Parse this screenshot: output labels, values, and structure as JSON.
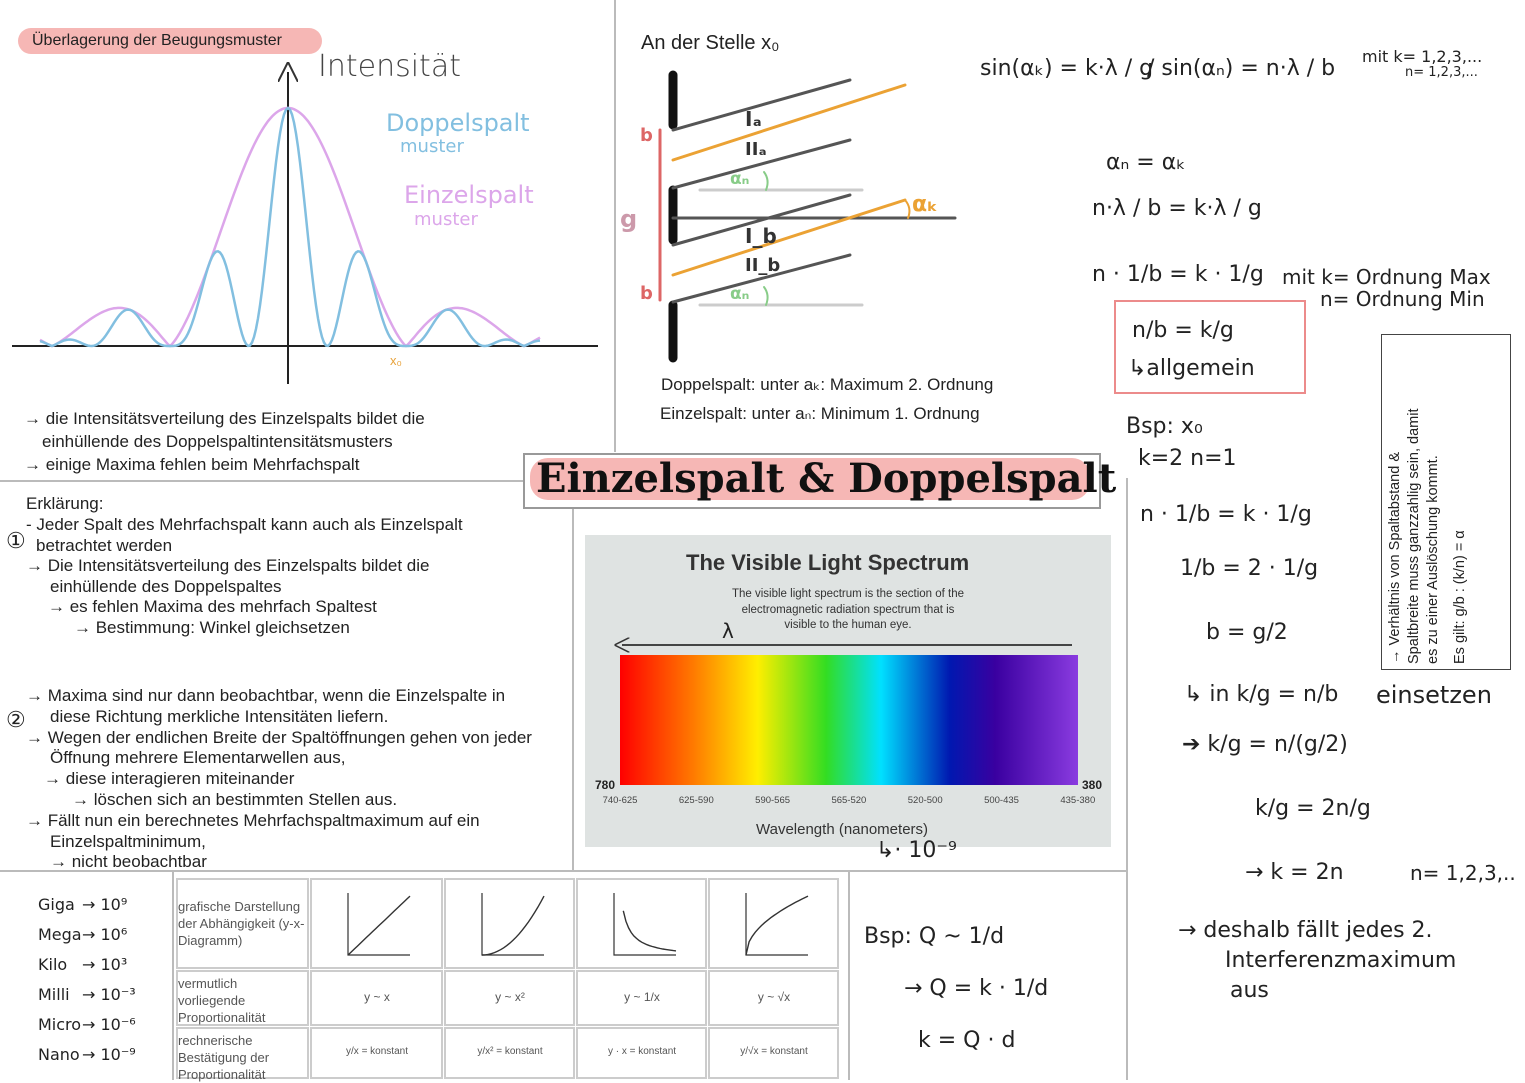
{
  "title": "Einzelspalt & Doppelspalt",
  "interference": {
    "tag": "Überlagerung der Beugungsmuster",
    "axis_label": "Intensität",
    "legend": [
      "Doppelspalt",
      "muster",
      "Einzelspalt",
      "muster"
    ],
    "x0": "x₀",
    "notes": [
      "→ die Intensitätsverteilung des Einzelspalts bildet die",
      "einhüllende des Doppelspaltintensitätsmusters",
      "→ einige Maxima fehlen beim Mehrfachspalt"
    ]
  },
  "explanation": {
    "heading": "Erklärung:",
    "marker_1": "①",
    "point_1": [
      "- Jeder Spalt des Mehrfachspalt kann auch als Einzelspalt",
      "betrachtet werden",
      "→ Die Intensitätsverteilung des Einzelspalts bildet die",
      "einhüllende des Doppelspaltes",
      "→ es fehlen Maxima des mehrfach Spaltest",
      "→ Bestimmung: Winkel gleichsetzen"
    ],
    "marker_2": "②",
    "point_2": [
      "→ Maxima sind nur dann beobachtbar, wenn die Einzelspalte in",
      "diese Richtung merkliche Intensitäten liefern.",
      "→ Wegen der endlichen Breite der Spaltöffnungen gehen von jeder",
      "Öffnung mehrere Elementarwellen aus,",
      "→ diese interagieren miteinander",
      "→ löschen sich an bestimmten Stellen aus.",
      "→ Fällt nun ein berechnetes Mehrfachspaltmaximum auf ein",
      "Einzelspaltminimum,",
      "→ nicht beobachtbar"
    ]
  },
  "position": {
    "heading": "An der Stelle x₀",
    "labels": [
      "b",
      "g",
      "b",
      "Iₐ",
      "IIₐ",
      "αₙ",
      "αₖ",
      "I_b",
      "II_b",
      "αₙ"
    ],
    "captions": [
      "Doppelspalt: unter aₖ: Maximum 2. Ordnung",
      "Einzelspalt: unter aₙ: Minimum 1. Ordnung"
    ]
  },
  "formulas": [
    "sin(αₖ) = k·λ / g",
    "/ sin(αₙ) = n·λ / b",
    "mit k= 1,2,3,...",
    "n= 1,2,3,...",
    "αₙ = αₖ",
    "n·λ / b = k·λ / g",
    "n · 1/b = k · 1/g",
    "mit k= Ordnung Max",
    "n= Ordnung Min",
    "n/b = k/g",
    "↳allgemein",
    "Bsp: x₀",
    "k=2    n=1",
    "n · 1/b = k · 1/g",
    "1/b = 2 · 1/g",
    "b = g/2",
    "↳ in k/g = n/b",
    "einsetzen",
    "➔ k/g = n/(g/2)",
    "k/g = 2n/g",
    "→ k = 2n",
    "n= 1,2,3,..",
    "→ deshalb fällt jedes 2.",
    "Interferenzmaximum",
    "aus"
  ],
  "side_note": [
    "→ Verhältnis von Spaltabstand &",
    "Spaltbreite muss ganzzahlig sein, damit",
    "es zu einer Auslöschung kommt.",
    "Es gilt:  g/b : (k/n) = α"
  ],
  "spectrum": {
    "title": "The Visible Light Spectrum",
    "description": [
      "The visible light spectrum is the section of the",
      "electromagnetic radiation spectrum that is",
      "visible to the human eye."
    ],
    "lambda": "λ",
    "left_end": "780",
    "right_end": "380",
    "ranges": [
      "740-625",
      "625-590",
      "590-565",
      "565-520",
      "520-500",
      "500-435",
      "435-380"
    ],
    "axis_label": "Wavelength (nanometers)",
    "unit_note": "↳· 10⁻⁹"
  },
  "prefixes": [
    [
      "Giga",
      "→ 10⁹"
    ],
    [
      "Mega",
      "→ 10⁶"
    ],
    [
      "Kilo",
      "→ 10³"
    ],
    [
      "Milli",
      "→ 10⁻³"
    ],
    [
      "Micro",
      "→ 10⁻⁶"
    ],
    [
      "Nano",
      "→ 10⁻⁹"
    ]
  ],
  "table": {
    "row_heads": [
      "grafische Darstellung der Abhängigkeit (y-x-Diagramm)",
      "vermutlich vorliegende Proportionalität",
      "rechnerische Bestätigung der Proportionalität"
    ],
    "proportionality": [
      "y ~ x",
      "y ~ x²",
      "y ~ 1/x",
      "y ~ √x"
    ],
    "confirmation": [
      "y/x = konstant",
      "y/x² = konstant",
      "y · x = konstant",
      "y/√x = konstant"
    ]
  },
  "example": [
    "Bsp:  Q ~ 1/d",
    "→ Q = k · 1/d",
    "k = Q · d"
  ]
}
